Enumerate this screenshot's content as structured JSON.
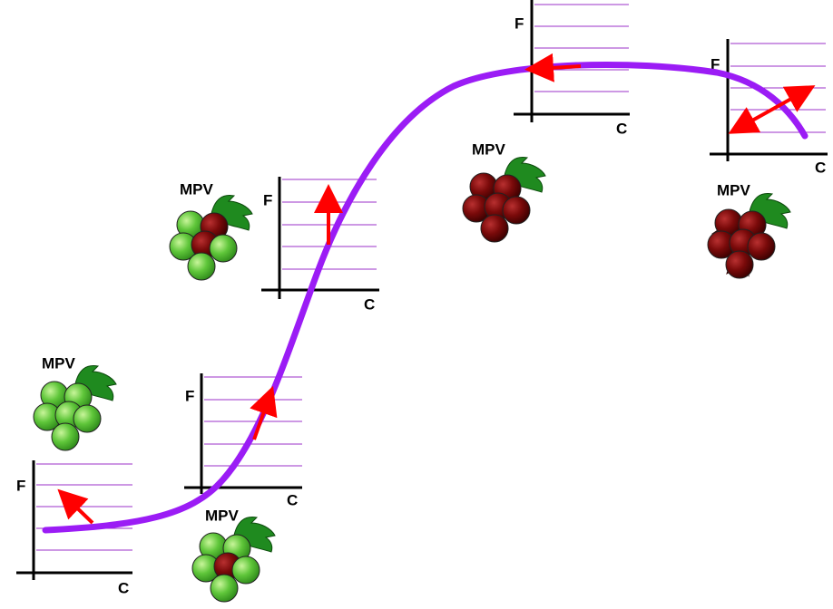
{
  "panels": [
    {
      "y_label": "F",
      "x_label": "C",
      "grape_label": "MPV"
    },
    {
      "y_label": "F",
      "x_label": "C",
      "grape_label": "MPV"
    },
    {
      "y_label": "F",
      "x_label": "C",
      "grape_label": "MPV"
    },
    {
      "y_label": "F",
      "x_label": "C",
      "grape_label": "MPV"
    },
    {
      "y_label": "F",
      "x_label": "C",
      "grape_label": "MPV"
    }
  ]
}
